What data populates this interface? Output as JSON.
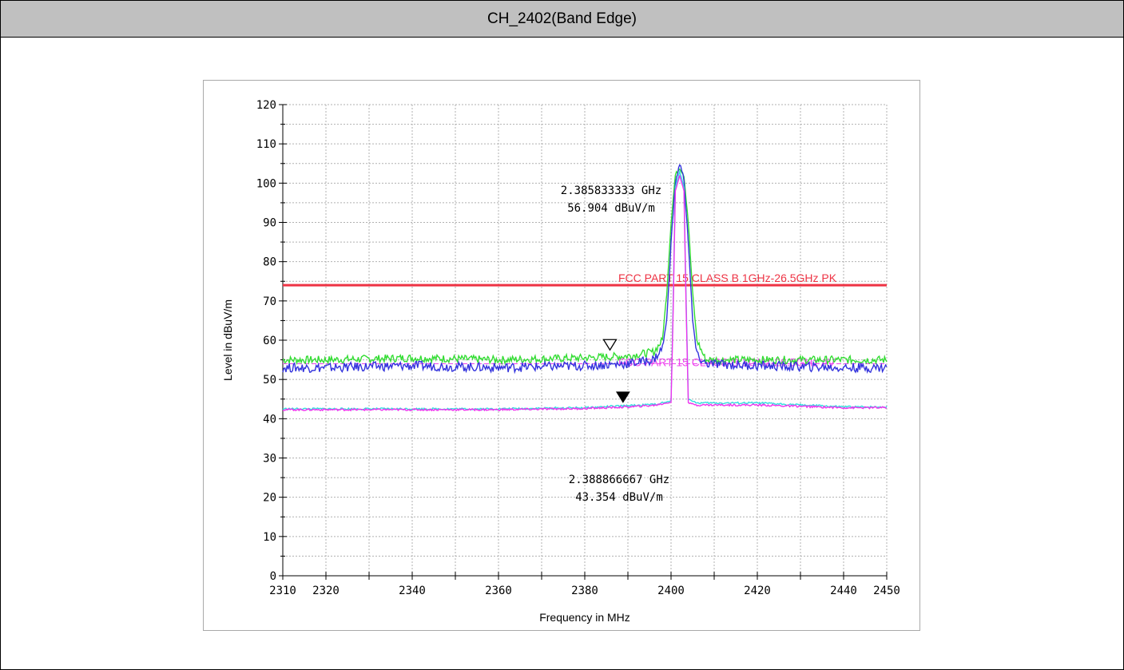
{
  "header": {
    "title": "CH_2402(Band Edge)"
  },
  "colors": {
    "peak_green": "#33dd33",
    "peak_blue": "#3333dd",
    "avg_cyan": "#33dddd",
    "avg_magenta": "#ee33ee",
    "limit_pk": "#ee3344",
    "limit_av": "#ee44ee",
    "grid": "#b0b0b0"
  },
  "chart_data": {
    "type": "line",
    "xlabel": "Frequency in MHz",
    "ylabel": "Level in dBuV/m",
    "xlim": [
      2310,
      2450
    ],
    "ylim": [
      0,
      120
    ],
    "x_ticks": [
      2310,
      2320,
      2340,
      2360,
      2380,
      2400,
      2420,
      2440,
      2450
    ],
    "y_ticks": [
      0,
      10,
      20,
      30,
      40,
      50,
      60,
      70,
      80,
      90,
      100,
      110,
      120
    ],
    "grid": true,
    "limit_lines": [
      {
        "label": "FCC PART 15 CLASS B 1GHz-26.5GHz PK",
        "value": 74,
        "style": "solid"
      },
      {
        "label": "FCC PART 15 CLASS B 1GHz-26.5GHz AV",
        "value": 54,
        "style": "dashed"
      }
    ],
    "series": [
      {
        "x": [
          2310,
          2320,
          2340,
          2360,
          2380,
          2390,
          2396,
          2398,
          2399,
          2400,
          2401,
          2402,
          2403,
          2404,
          2405,
          2406,
          2408,
          2420,
          2440,
          2450
        ],
        "values": [
          55,
          55,
          55.5,
          55,
          55.5,
          56,
          57,
          60,
          72,
          90,
          102,
          104,
          102,
          90,
          72,
          60,
          55,
          55,
          55,
          55
        ]
      },
      {
        "x": [
          2310,
          2320,
          2340,
          2360,
          2380,
          2390,
          2396,
          2398,
          2399,
          2400,
          2401,
          2402,
          2403,
          2404,
          2405,
          2406,
          2408,
          2420,
          2440,
          2450
        ],
        "values": [
          53,
          53,
          53.5,
          53,
          53.5,
          54,
          55,
          58,
          65,
          85,
          100,
          105,
          101,
          85,
          65,
          56,
          54,
          53.5,
          53,
          53
        ]
      },
      {
        "x": [
          2310,
          2320,
          2340,
          2360,
          2380,
          2390,
          2396,
          2398,
          2400,
          2400.5,
          2401,
          2402,
          2403,
          2403.5,
          2404,
          2406,
          2420,
          2440,
          2450
        ],
        "values": [
          42.5,
          42.5,
          42.5,
          42.5,
          42.8,
          43.3,
          43.6,
          44,
          44.5,
          70,
          99,
          103,
          99,
          70,
          45,
          44,
          44,
          43,
          43
        ]
      },
      {
        "x": [
          2310,
          2320,
          2340,
          2360,
          2380,
          2390,
          2396,
          2398,
          2400,
          2400.5,
          2401,
          2402,
          2403,
          2403.5,
          2404,
          2406,
          2420,
          2440,
          2450
        ],
        "values": [
          42.3,
          42.3,
          42.3,
          42.3,
          42.6,
          43,
          43.4,
          43.8,
          44.2,
          68,
          98,
          102,
          98,
          68,
          44,
          43.5,
          43.5,
          42.8,
          42.8
        ]
      }
    ],
    "markers": [
      {
        "type": "peak",
        "x": 2385.833333,
        "y": 56.904,
        "label_freq": "2.385833333 GHz",
        "label_level": "56.904 dBuV/m"
      },
      {
        "type": "average",
        "x": 2388.866667,
        "y": 43.354,
        "label_freq": "2.388866667 GHz",
        "label_level": "43.354 dBuV/m"
      }
    ]
  }
}
